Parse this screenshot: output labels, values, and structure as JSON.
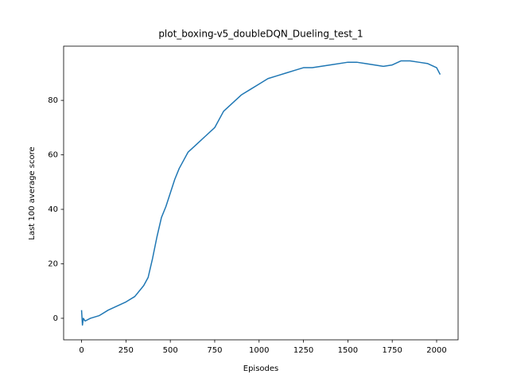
{
  "chart_data": {
    "type": "line",
    "title": "plot_boxing-v5_doubleDQN_Dueling_test_1",
    "x_label": "Episodes",
    "y_label": "Last 100 average score",
    "x": [
      0,
      5,
      10,
      20,
      50,
      100,
      150,
      200,
      250,
      300,
      350,
      375,
      400,
      425,
      450,
      475,
      500,
      525,
      550,
      575,
      600,
      650,
      700,
      750,
      800,
      850,
      900,
      950,
      1000,
      1050,
      1100,
      1150,
      1200,
      1250,
      1300,
      1400,
      1500,
      1550,
      1600,
      1650,
      1700,
      1750,
      1800,
      1850,
      1900,
      1950,
      2000,
      2020
    ],
    "series": [
      {
        "color": "#1f77b4",
        "values": [
          3,
          -2.5,
          0,
          -1,
          0,
          1,
          3,
          4.5,
          6,
          8,
          12,
          15,
          22,
          30,
          37,
          41,
          46,
          51,
          55,
          58,
          61,
          64,
          67,
          70,
          76,
          79,
          82,
          84,
          86,
          88,
          89,
          90,
          91,
          92,
          92,
          93,
          94,
          94,
          93.5,
          93,
          92.5,
          93,
          94.5,
          94.5,
          94,
          93.5,
          92,
          89.5
        ]
      }
    ],
    "xlim": [
      -101,
      2121
    ],
    "ylim": [
      -7.9,
      99.9
    ],
    "xticks": [
      0,
      250,
      500,
      750,
      1000,
      1250,
      1500,
      1750,
      2000
    ],
    "yticks": [
      0,
      20,
      40,
      60,
      80
    ]
  }
}
